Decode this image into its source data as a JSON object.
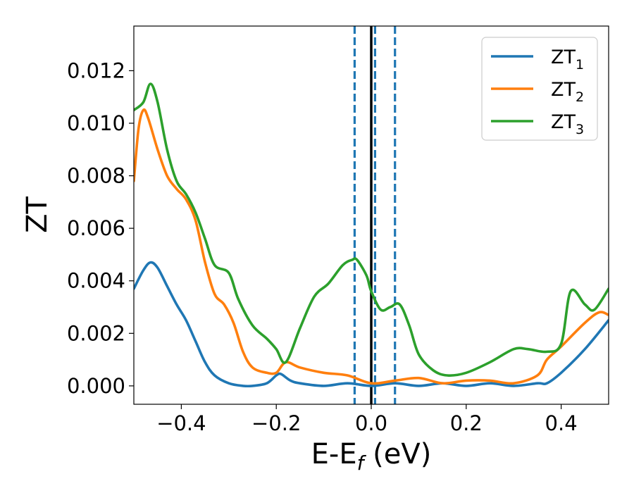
{
  "chart_data": {
    "type": "line",
    "title": "",
    "xlabel": "E-E",
    "xlabel_sub": "f",
    "xlabel_unit": " (eV)",
    "ylabel": "ZT",
    "xlim": [
      -0.5,
      0.5
    ],
    "ylim": [
      -0.0007,
      0.0137
    ],
    "xticks": [
      -0.4,
      -0.2,
      0.0,
      0.2,
      0.4
    ],
    "xtick_labels": [
      "−0.4",
      "−0.2",
      "0.0",
      "0.2",
      "0.4"
    ],
    "yticks": [
      0.0,
      0.002,
      0.004,
      0.006,
      0.008,
      0.01,
      0.012
    ],
    "ytick_labels": [
      "0.000",
      "0.002",
      "0.004",
      "0.006",
      "0.008",
      "0.010",
      "0.012"
    ],
    "grid": false,
    "legend_position": "top-right",
    "vlines": [
      {
        "x": -0.035,
        "style": "dashed",
        "color": "#1f77b4"
      },
      {
        "x": 0.008,
        "style": "dashed",
        "color": "#1f77b4"
      },
      {
        "x": 0.05,
        "style": "dashed",
        "color": "#1f77b4"
      },
      {
        "x": 0.0,
        "style": "solid",
        "color": "#000000"
      }
    ],
    "series": [
      {
        "name": "ZT",
        "subscript": "1",
        "color": "#1f77b4",
        "x": [
          -0.5,
          -0.48,
          -0.465,
          -0.45,
          -0.43,
          -0.41,
          -0.39,
          -0.37,
          -0.35,
          -0.33,
          -0.3,
          -0.27,
          -0.25,
          -0.22,
          -0.2,
          -0.19,
          -0.17,
          -0.15,
          -0.1,
          -0.05,
          0.0,
          0.05,
          0.1,
          0.15,
          0.2,
          0.25,
          0.3,
          0.35,
          0.37,
          0.4,
          0.45,
          0.5
        ],
        "y": [
          0.0037,
          0.0044,
          0.0047,
          0.0045,
          0.0038,
          0.0031,
          0.0025,
          0.0017,
          0.0009,
          0.0004,
          0.0001,
          0.0,
          0.0,
          0.0001,
          0.0004,
          0.00045,
          0.0002,
          0.0001,
          0.0,
          0.0001,
          0.0,
          0.0001,
          0.0,
          0.0001,
          0.0,
          0.0001,
          0.0,
          0.0001,
          0.0001,
          0.0005,
          0.0014,
          0.0025
        ]
      },
      {
        "name": "ZT",
        "subscript": "2",
        "color": "#ff7f0e",
        "x": [
          -0.5,
          -0.49,
          -0.48,
          -0.47,
          -0.45,
          -0.43,
          -0.41,
          -0.39,
          -0.37,
          -0.35,
          -0.33,
          -0.31,
          -0.29,
          -0.27,
          -0.25,
          -0.22,
          -0.2,
          -0.18,
          -0.15,
          -0.1,
          -0.05,
          0.0,
          0.05,
          0.1,
          0.15,
          0.2,
          0.25,
          0.3,
          0.35,
          0.37,
          0.4,
          0.45,
          0.48,
          0.5
        ],
        "y": [
          0.0078,
          0.0098,
          0.0105,
          0.0102,
          0.009,
          0.008,
          0.0075,
          0.0071,
          0.0063,
          0.0047,
          0.0035,
          0.0031,
          0.0024,
          0.0013,
          0.0007,
          0.0005,
          0.0005,
          0.0009,
          0.0007,
          0.0005,
          0.0004,
          0.0001,
          0.0002,
          0.0003,
          0.0001,
          0.0002,
          0.0002,
          0.0001,
          0.0004,
          0.001,
          0.0015,
          0.0024,
          0.0028,
          0.0027
        ]
      },
      {
        "name": "ZT",
        "subscript": "3",
        "color": "#2ca02c",
        "x": [
          -0.5,
          -0.48,
          -0.465,
          -0.45,
          -0.43,
          -0.41,
          -0.39,
          -0.37,
          -0.35,
          -0.33,
          -0.3,
          -0.28,
          -0.25,
          -0.22,
          -0.2,
          -0.18,
          -0.15,
          -0.12,
          -0.09,
          -0.06,
          -0.04,
          -0.03,
          -0.01,
          0.0,
          0.02,
          0.04,
          0.06,
          0.08,
          0.1,
          0.13,
          0.16,
          0.2,
          0.25,
          0.3,
          0.33,
          0.37,
          0.4,
          0.42,
          0.45,
          0.47,
          0.5
        ],
        "y": [
          0.0105,
          0.0108,
          0.0115,
          0.0108,
          0.009,
          0.0078,
          0.0073,
          0.0066,
          0.0056,
          0.0046,
          0.0043,
          0.0033,
          0.0023,
          0.0018,
          0.0014,
          0.0009,
          0.0022,
          0.0034,
          0.0039,
          0.0046,
          0.0048,
          0.0048,
          0.0042,
          0.0036,
          0.0029,
          0.003,
          0.0031,
          0.0023,
          0.0012,
          0.0006,
          0.0004,
          0.0005,
          0.0009,
          0.0014,
          0.0014,
          0.0013,
          0.0016,
          0.0036,
          0.0031,
          0.0029,
          0.0037
        ]
      }
    ]
  }
}
